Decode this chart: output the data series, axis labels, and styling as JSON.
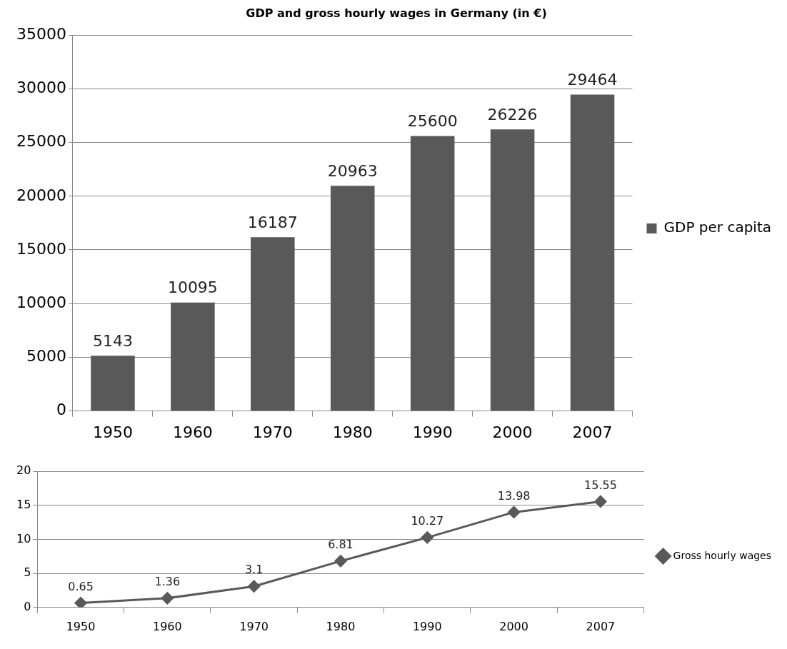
{
  "chart_data": [
    {
      "type": "bar",
      "title": "GDP and gross hourly wages in Germany (in €)",
      "categories": [
        "1950",
        "1960",
        "1970",
        "1980",
        "1990",
        "2000",
        "2007"
      ],
      "series": [
        {
          "name": "GDP per capita",
          "color": "#595959",
          "values": [
            5143,
            10095,
            16187,
            20963,
            25600,
            26226,
            29464
          ]
        }
      ],
      "ylim": [
        0,
        35000
      ],
      "yticks": [
        0,
        5000,
        10000,
        15000,
        20000,
        25000,
        30000,
        35000
      ],
      "grid": "y",
      "legend": "right",
      "data_labels": true
    },
    {
      "type": "line",
      "categories": [
        "1950",
        "1960",
        "1970",
        "1980",
        "1990",
        "2000",
        "2007"
      ],
      "series": [
        {
          "name": "Gross hourly wages",
          "color": "#595959",
          "values": [
            0.65,
            1.36,
            3.1,
            6.81,
            10.27,
            13.98,
            15.55
          ]
        }
      ],
      "ylim": [
        0,
        20
      ],
      "yticks": [
        0,
        5,
        10,
        15,
        20
      ],
      "grid": "y",
      "legend": "right",
      "marker": "diamond",
      "data_labels": true
    }
  ]
}
